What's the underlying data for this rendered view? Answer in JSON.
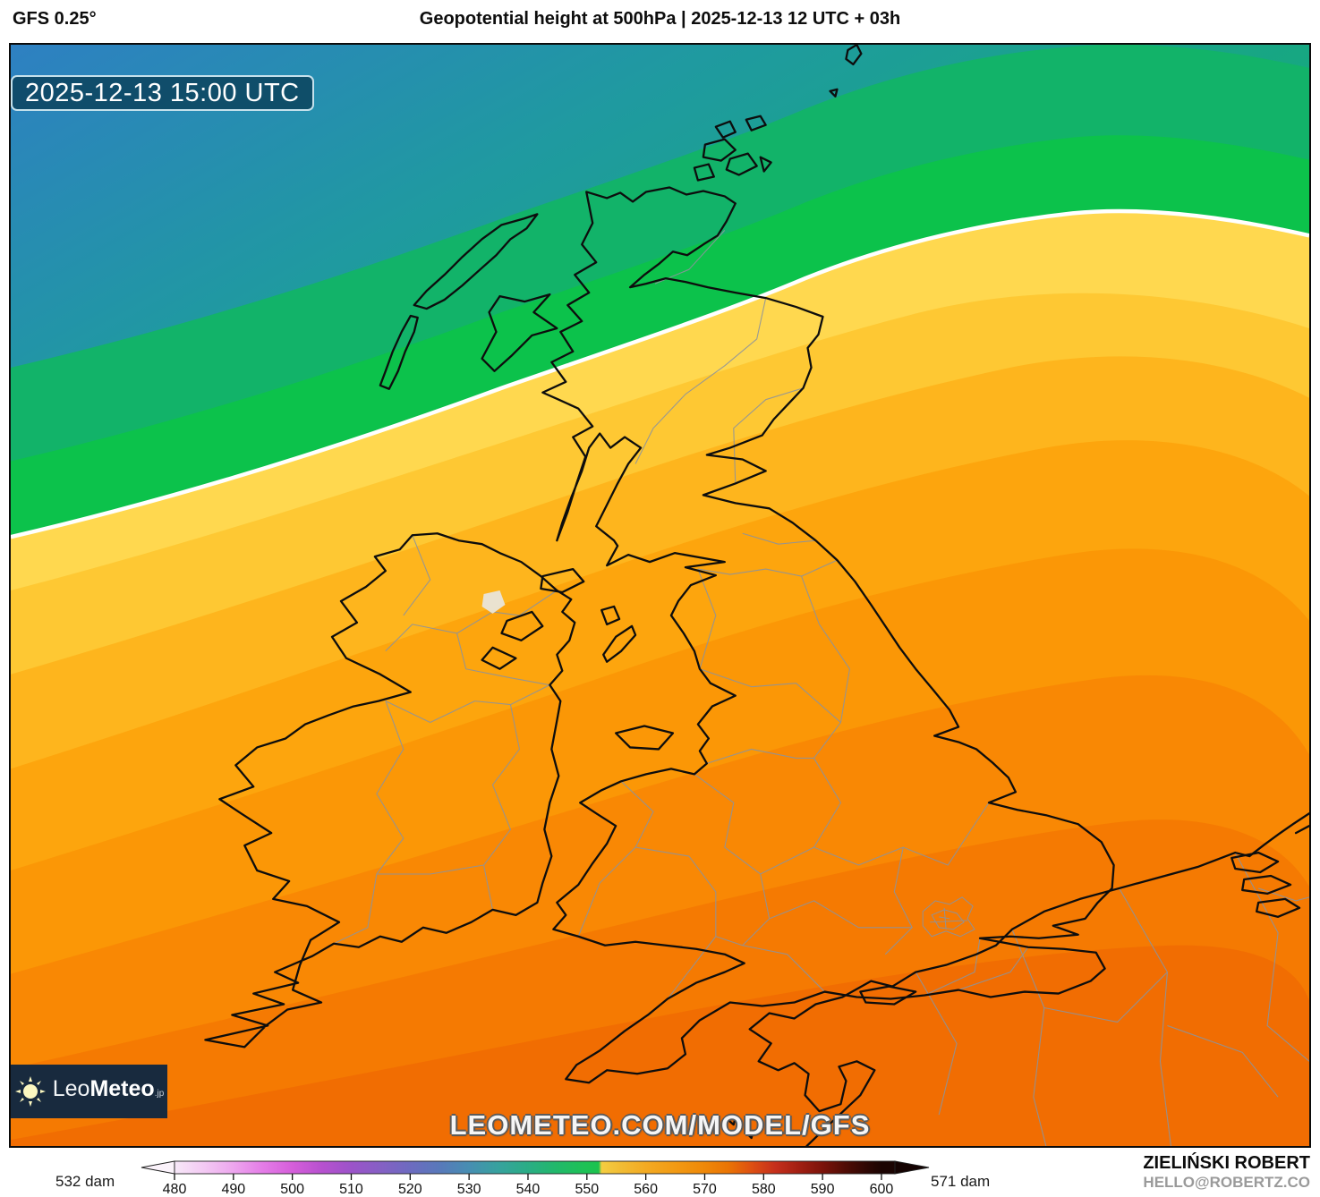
{
  "header": {
    "model": "GFS 0.25°",
    "title": "Geopotential height at 500hPa | 2025-12-13 12 UTC + 03h"
  },
  "map": {
    "timestamp": "2025-12-13 15:00 UTC",
    "watermark": "LEOMETEO.COM/MODEL/GFS"
  },
  "logo": {
    "name_light": "Leo",
    "name_bold": "Meteo",
    "suffix": ".jp"
  },
  "credits": {
    "name": "ZIELIŃSKI ROBERT",
    "email": "HELLO@ROBERTZ.CO"
  },
  "colorbar": {
    "min_label": "532 dam",
    "max_label": "571 dam",
    "ticks": [
      "480",
      "490",
      "500",
      "510",
      "520",
      "530",
      "540",
      "550",
      "560",
      "570",
      "580",
      "590",
      "600"
    ]
  },
  "colors": {
    "sea_blue": "#2e80c2",
    "teal": "#1f9aa0",
    "green": "#0cc24b",
    "yellow": "#ffd84f",
    "orange": "#fda50d",
    "deep_orange": "#f16d02",
    "contour_line": "#ffffff",
    "logo_bg": "#182a3e",
    "stamp_bg": "#0a3e58",
    "credit_gray": "#9a9a9a"
  }
}
